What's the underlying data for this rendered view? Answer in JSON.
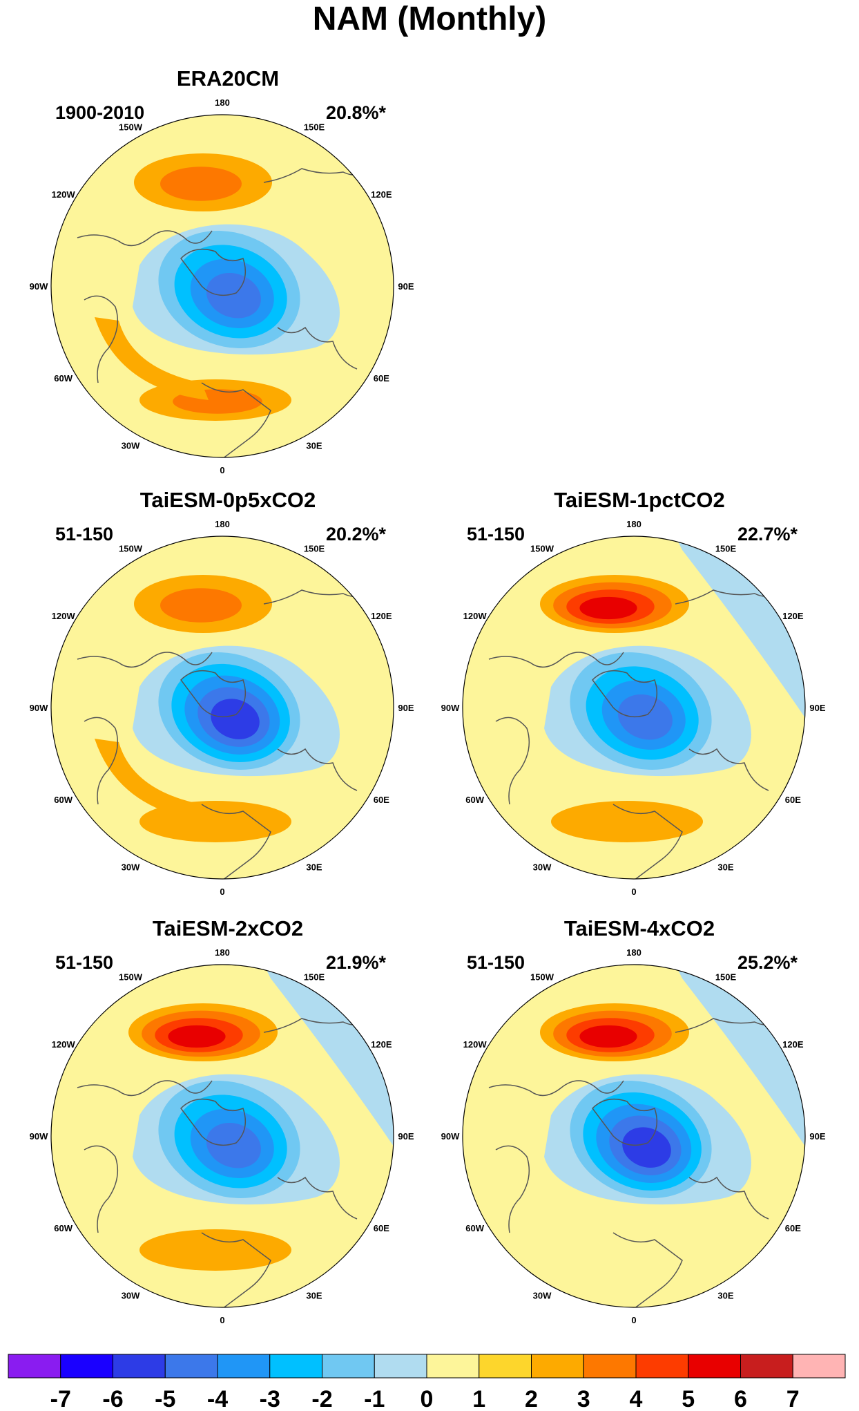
{
  "figure": {
    "title": "NAM (Monthly)"
  },
  "panels": [
    {
      "id": "era20cm",
      "title": "ERA20CM",
      "period": "1900-2010",
      "variance": "20.8%*",
      "pos": 1,
      "pattern": {
        "north_max": 3,
        "center_min": -5,
        "south_max": 3,
        "atlantic_max": 2
      }
    },
    {
      "id": "p05x",
      "title": "TaiESM-0p5xCO2",
      "period": "51-150",
      "variance": "20.2%*",
      "pos": 3,
      "pattern": {
        "north_max": 3,
        "center_min": -6,
        "south_max": 2,
        "atlantic_max": 2
      }
    },
    {
      "id": "1pct",
      "title": "TaiESM-1pctCO2",
      "period": "51-150",
      "variance": "22.7%*",
      "pos": 4,
      "pattern": {
        "north_max": 5,
        "center_min": -5,
        "south_max": 2,
        "atlantic_max": 1
      }
    },
    {
      "id": "2x",
      "title": "TaiESM-2xCO2",
      "period": "51-150",
      "variance": "21.9%*",
      "pos": 5,
      "pattern": {
        "north_max": 5,
        "center_min": -5,
        "south_max": 2,
        "atlantic_max": 1
      }
    },
    {
      "id": "4x",
      "title": "TaiESM-4xCO2",
      "period": "51-150",
      "variance": "25.2%*",
      "pos": 6,
      "pattern": {
        "north_max": 5,
        "center_min": -6,
        "south_max": 1,
        "atlantic_max": 1
      }
    }
  ],
  "longitude_labels": [
    "180",
    "150E",
    "120E",
    "90E",
    "60E",
    "30E",
    "0",
    "30W",
    "60W",
    "90W",
    "120W",
    "150W"
  ],
  "colorbar": {
    "labels": [
      "-7",
      "-6",
      "-5",
      "-4",
      "-3",
      "-2",
      "-1",
      "0",
      "1",
      "2",
      "3",
      "4",
      "5",
      "6",
      "7"
    ],
    "colors": [
      "#8a1cf0",
      "#1a00ff",
      "#2d3ce6",
      "#3c78ea",
      "#2096f6",
      "#00c0ff",
      "#70c8f2",
      "#b0dcf0",
      "#fdf59a",
      "#fdd62c",
      "#fdaa00",
      "#fd7800",
      "#fd3c00",
      "#e80000",
      "#c81e1e",
      "#ffb4b4"
    ]
  },
  "colors": {
    "background": "#ffffff",
    "coastline": "#555555"
  }
}
